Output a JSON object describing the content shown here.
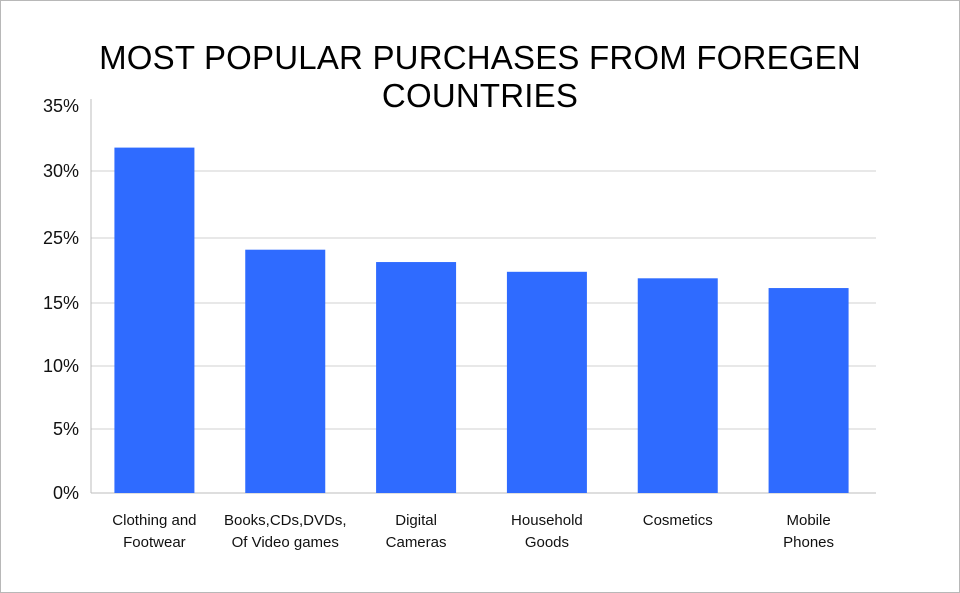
{
  "chart_data": {
    "type": "bar",
    "title": "MOST POPULAR PURCHASES FROM FOREGEN COUNTRIES",
    "xlabel": "",
    "ylabel": "",
    "categories": [
      [
        "Clothing and",
        "Footwear"
      ],
      [
        "Books,CDs,DVDs,",
        "Of Video games"
      ],
      [
        "Digital",
        "Cameras"
      ],
      [
        "Household",
        "Goods"
      ],
      [
        "Cosmetics"
      ],
      [
        "Mobile",
        "Phones"
      ]
    ],
    "values": [
      31.8,
      23.2,
      21.3,
      19.8,
      18.8,
      17.3
    ],
    "ytick_values": [
      0,
      5,
      10,
      15,
      25,
      30,
      35
    ],
    "ytick_labels": [
      "0%",
      "5%",
      "10%",
      "15%",
      "25%",
      "30%",
      "35%"
    ],
    "ylim": [
      0,
      35
    ],
    "grid": true,
    "legend": "none",
    "colors": {
      "bar": "#2f6bff",
      "grid": "#d0d0d0",
      "axis": "#bdbdbd"
    }
  }
}
